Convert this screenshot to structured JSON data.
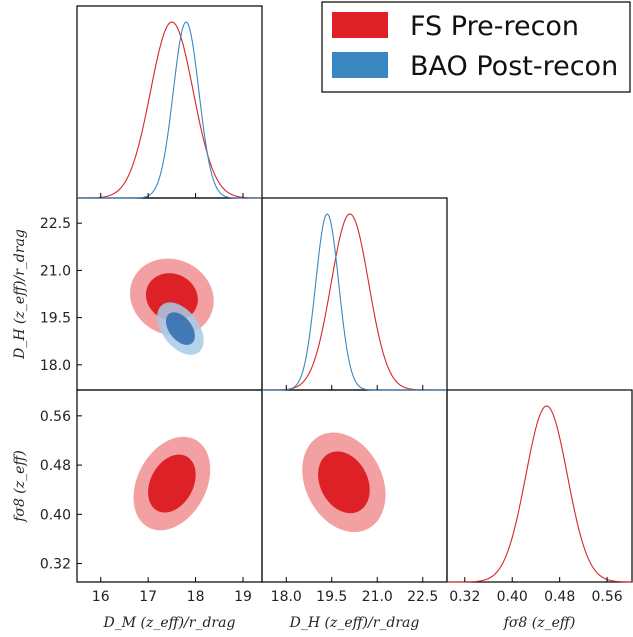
{
  "colors": {
    "fs_line": "#d62728",
    "fs_fill_inner": "#de2126",
    "fs_fill_outer": "#f3a0a2",
    "bao_line": "#3a87c2",
    "bao_fill_inner": "#2d6aae",
    "bao_fill_outer": "#a7cbe6"
  },
  "chart_data": {
    "type": "triangle-corner",
    "parameters": [
      {
        "id": "DM",
        "label": "D_M (z_eff)/r_drag",
        "ticks": [
          "16",
          "17",
          "18",
          "19"
        ],
        "range": [
          15.5,
          19.4
        ]
      },
      {
        "id": "DH",
        "label": "D_H (z_eff)/r_drag",
        "ticks": [
          "18.0",
          "19.5",
          "21.0",
          "22.5"
        ],
        "range": [
          17.2,
          23.3
        ]
      },
      {
        "id": "fs8",
        "label": "fσ8 (z_eff)",
        "ticks": [
          "0.32",
          "0.40",
          "0.48",
          "0.56"
        ],
        "range": [
          0.29,
          0.602
        ]
      }
    ],
    "axis_labels": {
      "x": [
        "D_M (z_eff)/r_drag",
        "D_H (z_eff)/r_drag",
        "fσ8 (z_eff)"
      ],
      "y": [
        "D_H (z_eff)/r_drag",
        "fσ8 (z_eff)"
      ]
    },
    "legend": {
      "placement": "top-right",
      "entries": [
        {
          "name": "FS Pre-recon",
          "color": "#de2126"
        },
        {
          "name": "BAO Post-recon",
          "color": "#3a87c2"
        }
      ]
    },
    "series": [
      {
        "name": "FS Pre-recon",
        "marginals": {
          "DM": [
            17.5,
            0.45
          ],
          "DH": [
            20.1,
            0.62
          ],
          "fs8": [
            0.458,
            0.035
          ]
        },
        "contours": [
          {
            "x": "DM",
            "y": "DH",
            "center": [
              17.5,
              20.15
            ],
            "sd": [
              0.36,
              0.5
            ],
            "rho": -0.1
          },
          {
            "x": "DM",
            "y": "fs8",
            "center": [
              17.5,
              0.45
            ],
            "sd": [
              0.33,
              0.031
            ],
            "rho": 0.3
          },
          {
            "x": "DH",
            "y": "fs8",
            "center": [
              19.9,
              0.452
            ],
            "sd": [
              0.56,
              0.033
            ],
            "rho": -0.25
          }
        ]
      },
      {
        "name": "BAO Post-recon",
        "marginals": {
          "DM": [
            17.8,
            0.27
          ],
          "DH": [
            19.35,
            0.38
          ]
        },
        "contours": [
          {
            "x": "DM",
            "y": "DH",
            "center": [
              17.68,
              19.15
            ],
            "sd": [
              0.2,
              0.34
            ],
            "rho": -0.45
          }
        ]
      }
    ]
  }
}
